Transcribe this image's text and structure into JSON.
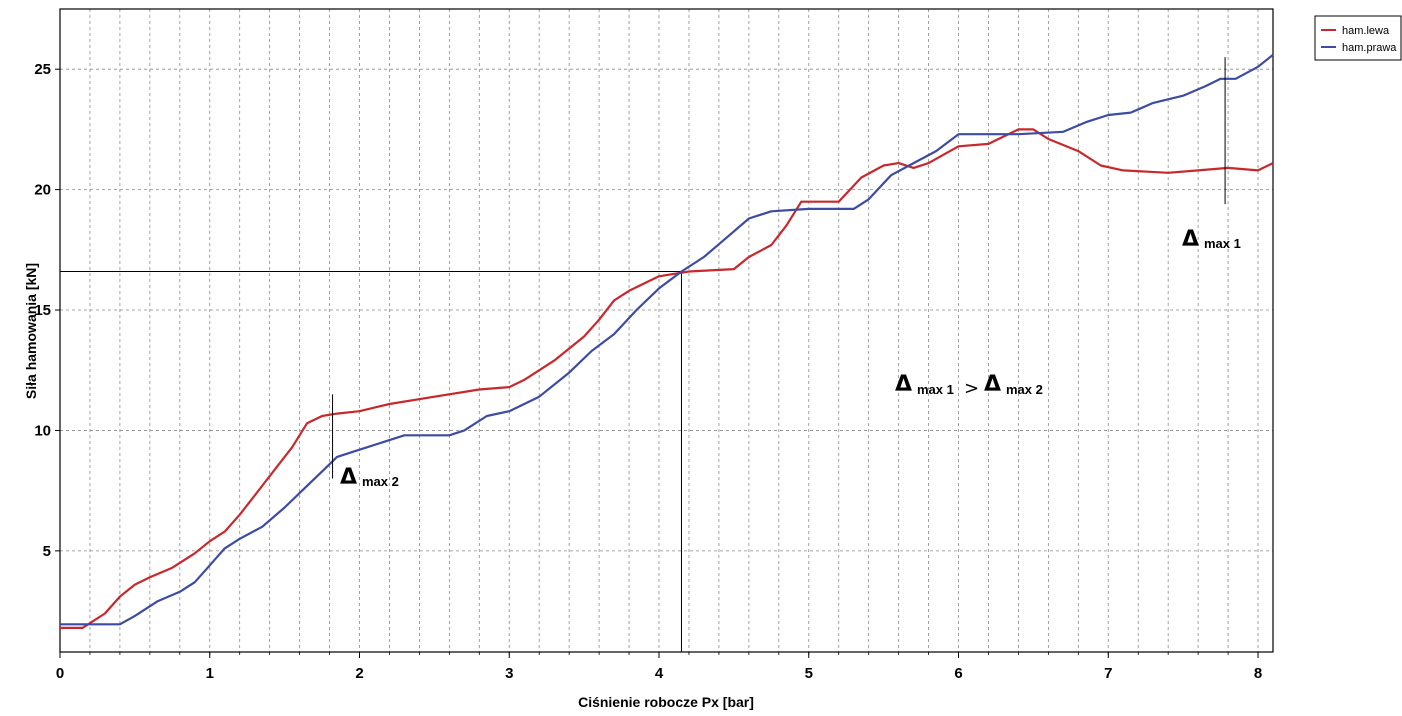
{
  "chart_data": {
    "type": "line",
    "title": "",
    "xlabel": "Ciśnienie robocze Px [bar]",
    "ylabel": "Siła hamowania [kN]",
    "xlim": [
      0,
      8.1
    ],
    "ylim": [
      0.8,
      27.5
    ],
    "xticks": [
      0,
      1,
      2,
      3,
      4,
      5,
      6,
      7,
      8
    ],
    "yticks": [
      5,
      10,
      15,
      20,
      25
    ],
    "grid": true,
    "legend_position": "top-right",
    "colors": {
      "ham_lewa": "#c8282b",
      "ham_prawa": "#3c4ba3"
    },
    "series": [
      {
        "name": "ham.lewa",
        "color": "#c8282b",
        "points": [
          [
            0,
            1.8
          ],
          [
            0.15,
            1.8
          ],
          [
            0.3,
            2.4
          ],
          [
            0.4,
            3.1
          ],
          [
            0.5,
            3.6
          ],
          [
            0.6,
            3.9
          ],
          [
            0.75,
            4.3
          ],
          [
            0.9,
            4.9
          ],
          [
            1.0,
            5.4
          ],
          [
            1.1,
            5.8
          ],
          [
            1.2,
            6.5
          ],
          [
            1.3,
            7.3
          ],
          [
            1.45,
            8.5
          ],
          [
            1.55,
            9.3
          ],
          [
            1.65,
            10.3
          ],
          [
            1.75,
            10.6
          ],
          [
            1.85,
            10.7
          ],
          [
            2.0,
            10.8
          ],
          [
            2.2,
            11.1
          ],
          [
            2.5,
            11.4
          ],
          [
            2.8,
            11.7
          ],
          [
            3.0,
            11.8
          ],
          [
            3.1,
            12.1
          ],
          [
            3.3,
            12.9
          ],
          [
            3.5,
            13.9
          ],
          [
            3.6,
            14.6
          ],
          [
            3.7,
            15.4
          ],
          [
            3.8,
            15.8
          ],
          [
            3.9,
            16.1
          ],
          [
            4.0,
            16.4
          ],
          [
            4.2,
            16.6
          ],
          [
            4.5,
            16.7
          ],
          [
            4.6,
            17.2
          ],
          [
            4.75,
            17.7
          ],
          [
            4.85,
            18.5
          ],
          [
            4.95,
            19.5
          ],
          [
            5.2,
            19.5
          ],
          [
            5.35,
            20.5
          ],
          [
            5.5,
            21.0
          ],
          [
            5.6,
            21.1
          ],
          [
            5.7,
            20.9
          ],
          [
            5.8,
            21.1
          ],
          [
            6.0,
            21.8
          ],
          [
            6.2,
            21.9
          ],
          [
            6.3,
            22.2
          ],
          [
            6.4,
            22.5
          ],
          [
            6.5,
            22.5
          ],
          [
            6.6,
            22.1
          ],
          [
            6.8,
            21.6
          ],
          [
            6.95,
            21.0
          ],
          [
            7.1,
            20.8
          ],
          [
            7.4,
            20.7
          ],
          [
            7.6,
            20.8
          ],
          [
            7.8,
            20.9
          ],
          [
            8.0,
            20.8
          ],
          [
            8.1,
            21.1
          ]
        ]
      },
      {
        "name": "ham.prawa",
        "color": "#3c4ba3",
        "points": [
          [
            0,
            1.95
          ],
          [
            0.4,
            1.95
          ],
          [
            0.5,
            2.3
          ],
          [
            0.65,
            2.9
          ],
          [
            0.8,
            3.3
          ],
          [
            0.9,
            3.7
          ],
          [
            1.0,
            4.4
          ],
          [
            1.1,
            5.1
          ],
          [
            1.2,
            5.5
          ],
          [
            1.35,
            6.0
          ],
          [
            1.5,
            6.8
          ],
          [
            1.65,
            7.7
          ],
          [
            1.75,
            8.3
          ],
          [
            1.85,
            8.9
          ],
          [
            2.0,
            9.2
          ],
          [
            2.2,
            9.6
          ],
          [
            2.3,
            9.8
          ],
          [
            2.6,
            9.8
          ],
          [
            2.7,
            10.0
          ],
          [
            2.85,
            10.6
          ],
          [
            3.0,
            10.8
          ],
          [
            3.2,
            11.4
          ],
          [
            3.4,
            12.4
          ],
          [
            3.55,
            13.3
          ],
          [
            3.7,
            14.0
          ],
          [
            3.85,
            15.0
          ],
          [
            4.0,
            15.9
          ],
          [
            4.15,
            16.6
          ],
          [
            4.3,
            17.2
          ],
          [
            4.45,
            18.0
          ],
          [
            4.6,
            18.8
          ],
          [
            4.75,
            19.1
          ],
          [
            5.0,
            19.2
          ],
          [
            5.1,
            19.2
          ],
          [
            5.3,
            19.2
          ],
          [
            5.4,
            19.6
          ],
          [
            5.55,
            20.6
          ],
          [
            5.7,
            21.1
          ],
          [
            5.85,
            21.6
          ],
          [
            6.0,
            22.3
          ],
          [
            6.2,
            22.3
          ],
          [
            6.4,
            22.3
          ],
          [
            6.7,
            22.4
          ],
          [
            6.85,
            22.8
          ],
          [
            7.0,
            23.1
          ],
          [
            7.15,
            23.2
          ],
          [
            7.3,
            23.6
          ],
          [
            7.5,
            23.9
          ],
          [
            7.65,
            24.3
          ],
          [
            7.75,
            24.6
          ],
          [
            7.85,
            24.6
          ],
          [
            8.0,
            25.1
          ],
          [
            8.1,
            25.6
          ]
        ]
      }
    ],
    "reference_lines": {
      "x": 4.15,
      "y": 16.6
    },
    "annotations": {
      "delta_symbol": "Δ",
      "max1_sub": "max 1",
      "max2_sub": "max 2",
      "comparison_gt": ">",
      "marker_max1": {
        "x": 7.78,
        "y_top": 25.5,
        "y_bottom": 19.4
      },
      "marker_max2": {
        "x": 1.82,
        "y_top": 11.5,
        "y_bottom": 8.0
      }
    }
  }
}
